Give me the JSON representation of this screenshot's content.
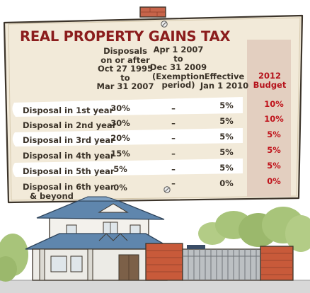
{
  "title": "REAL PROPERTY GAINS TAX",
  "columns": [
    {
      "label": "Disposals on or after Oct 27 1995 to Mar 31 2007",
      "lines": [
        "Disposals",
        "on or after",
        "Oct 27 1995",
        "to",
        "Mar 31 2007"
      ]
    },
    {
      "label": "Apr 1 2007 to Dec 31 2009 (Exemption period)",
      "lines": [
        "Apr 1 2007",
        "to",
        "Dec 31 2009",
        "(Exemption",
        "period)"
      ]
    },
    {
      "label": "Effective Jan 1 2010",
      "lines": [
        "Effective",
        "Jan 1 2010"
      ]
    },
    {
      "label": "2012 Budget",
      "lines": [
        "2012",
        "Budget"
      ]
    }
  ],
  "rows": [
    {
      "label": "Disposal in 1st year",
      "label_lines": [
        "Disposal in 1st year"
      ],
      "values": [
        "30%",
        "–",
        "5%",
        "10%"
      ]
    },
    {
      "label": "Disposal in 2nd year",
      "label_lines": [
        "Disposal in 2nd year"
      ],
      "values": [
        "30%",
        "–",
        "5%",
        "10%"
      ]
    },
    {
      "label": "Disposal in 3rd year",
      "label_lines": [
        "Disposal in 3rd year"
      ],
      "values": [
        "20%",
        "–",
        "5%",
        "5%"
      ]
    },
    {
      "label": "Disposal in 4th year",
      "label_lines": [
        "Disposal in 4th year"
      ],
      "values": [
        "15%",
        "–",
        "5%",
        "5%"
      ]
    },
    {
      "label": "Disposal in 5th year",
      "label_lines": [
        "Disposal in 5th year"
      ],
      "values": [
        "5%",
        "–",
        "5%",
        "5%"
      ]
    },
    {
      "label": "Disposal in 6th year & beyond",
      "label_lines": [
        "Disposal in 6th year",
        "& beyond"
      ],
      "values": [
        "0%",
        "–",
        "0%",
        "0%"
      ]
    }
  ],
  "colors": {
    "board": "#f2ead9",
    "board_edge": "#3c342a",
    "title": "#8b1d1d",
    "budget_column": "#e3cfc0",
    "highlight": "#c0141c",
    "roof": "#5f86ad",
    "brick": "#c85a3a"
  }
}
